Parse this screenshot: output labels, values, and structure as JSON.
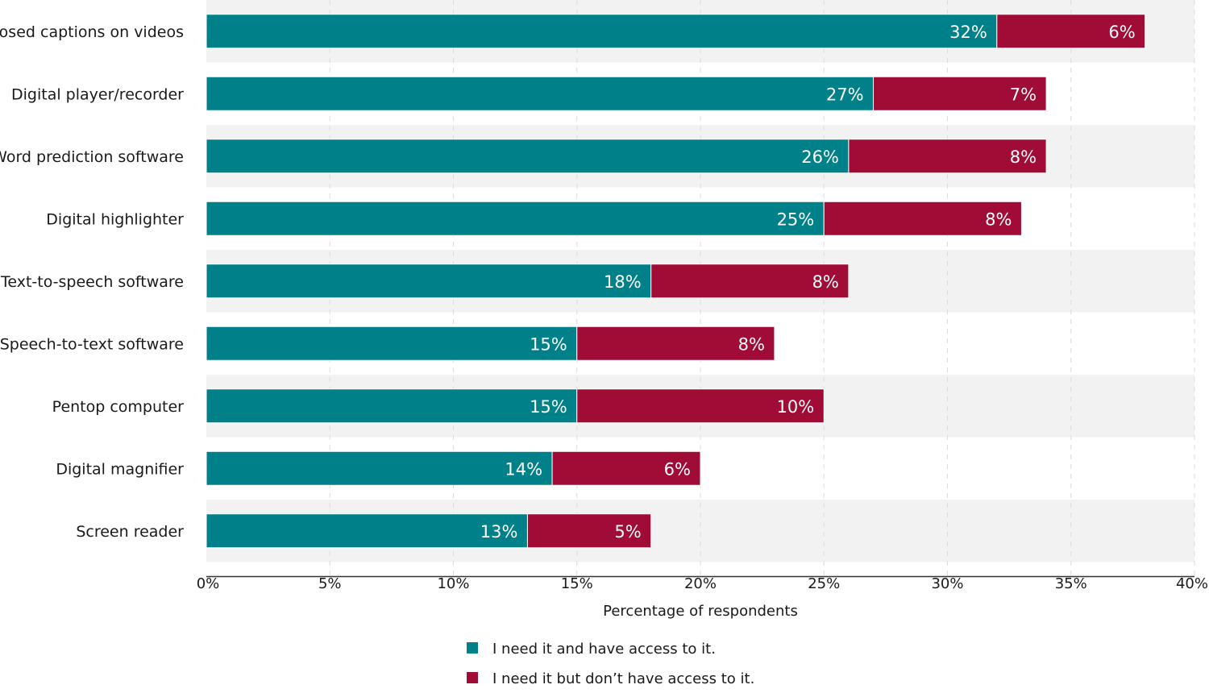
{
  "chart_data": {
    "type": "bar",
    "orientation": "horizontal",
    "stacked": true,
    "categories": [
      "Closed captions on videos",
      "Digital player/recorder",
      "Word prediction software",
      "Digital highlighter",
      "Text-to-speech software",
      "Speech-to-text software",
      "Pentop computer",
      "Digital magnifier",
      "Screen reader"
    ],
    "series": [
      {
        "name": "I need it and have access to it.",
        "color": "#00818a",
        "values": [
          32,
          27,
          26,
          25,
          18,
          15,
          15,
          14,
          13
        ],
        "labels": [
          "32%",
          "27%",
          "26%",
          "25%",
          "18%",
          "15%",
          "15%",
          "14%",
          "13%"
        ]
      },
      {
        "name": "I need it but don’t have access to it.",
        "color": "#a00c35",
        "values": [
          6,
          7,
          8,
          8,
          8,
          8,
          10,
          6,
          5
        ],
        "labels": [
          "6%",
          "7%",
          "8%",
          "8%",
          "8%",
          "8%",
          "10%",
          "6%",
          "5%"
        ]
      }
    ],
    "xlim": [
      0,
      40
    ],
    "xticks": [
      0,
      5,
      10,
      15,
      20,
      25,
      30,
      35,
      40
    ],
    "xtick_labels": [
      "0%",
      "5%",
      "10%",
      "15%",
      "20%",
      "25%",
      "30%",
      "35%",
      "40%"
    ],
    "xlabel": "Percentage of respondents",
    "ylabel": "",
    "title": "",
    "grid": true,
    "legend_position": "bottom",
    "band_color": "#f2f2f2"
  }
}
